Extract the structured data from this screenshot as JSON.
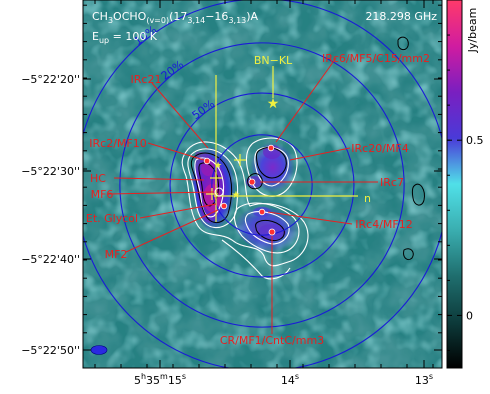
{
  "chart_data": {
    "type": "heatmap",
    "title": {
      "species_main": "CH",
      "species_sub1": "3",
      "species_mid": "OCHO",
      "species_sub2": "(v=0)",
      "transition_open": "(17",
      "upper_sub": "3,14",
      "transition_mid": "−16",
      "lower_sub": "3,13",
      "transition_close": ")A",
      "eup_label": "E",
      "eup_sub": "up",
      "eup_value": " = 100 K"
    },
    "frequency": "218.298 GHz",
    "ra_ticks": [
      {
        "h": "5",
        "m": "35",
        "s": "15",
        "has_hm": true
      },
      {
        "s": "14",
        "has_hm": false
      },
      {
        "s": "13",
        "has_hm": false
      }
    ],
    "dec_ticks": [
      "−5°22'20''",
      "−5°22'30''",
      "−5°22'40''",
      "−5°22'50''"
    ],
    "colorbar": {
      "label": "Jy/beam",
      "ticks": [
        0,
        0.5
      ],
      "range": [
        -0.15,
        0.9
      ],
      "stops": [
        "#000000",
        "#0d3b3b",
        "#1f6e6e",
        "#3aaeb0",
        "#50e0e8",
        "#4a3ad8",
        "#7a1fc0",
        "#d01ca0",
        "#ff3a6a"
      ]
    },
    "beam_ellipse": "yes",
    "rings": [
      {
        "label": "",
        "r": 0.24
      },
      {
        "label": "50%",
        "r": 0.44
      },
      {
        "label": "20%",
        "r": 0.68
      },
      {
        "label": "10%",
        "r": 0.89
      }
    ],
    "yellow_markers": {
      "label_bn": "BN−KL",
      "label_n": "n"
    },
    "peaks": [
      {
        "label": "IRc6/MF5/C15/mm2"
      },
      {
        "label": "IRc21"
      },
      {
        "label": "IRc2/MF10"
      },
      {
        "label": "IRc20/MF4"
      },
      {
        "label": "HC"
      },
      {
        "label": "IRc7"
      },
      {
        "label": "MF6"
      },
      {
        "label": "Et. Glycol"
      },
      {
        "label": "IRc4/MF12"
      },
      {
        "label": "MF2"
      },
      {
        "label": "CR/MF1/CntC/mm3"
      }
    ],
    "colors": {
      "axis": "#000000",
      "rings": "#1a1ad8",
      "leader": "#e82020",
      "label_text": "#e82020",
      "yellow": "#f0f040",
      "white_contour": "#ffffff",
      "black_contour": "#000000"
    }
  }
}
